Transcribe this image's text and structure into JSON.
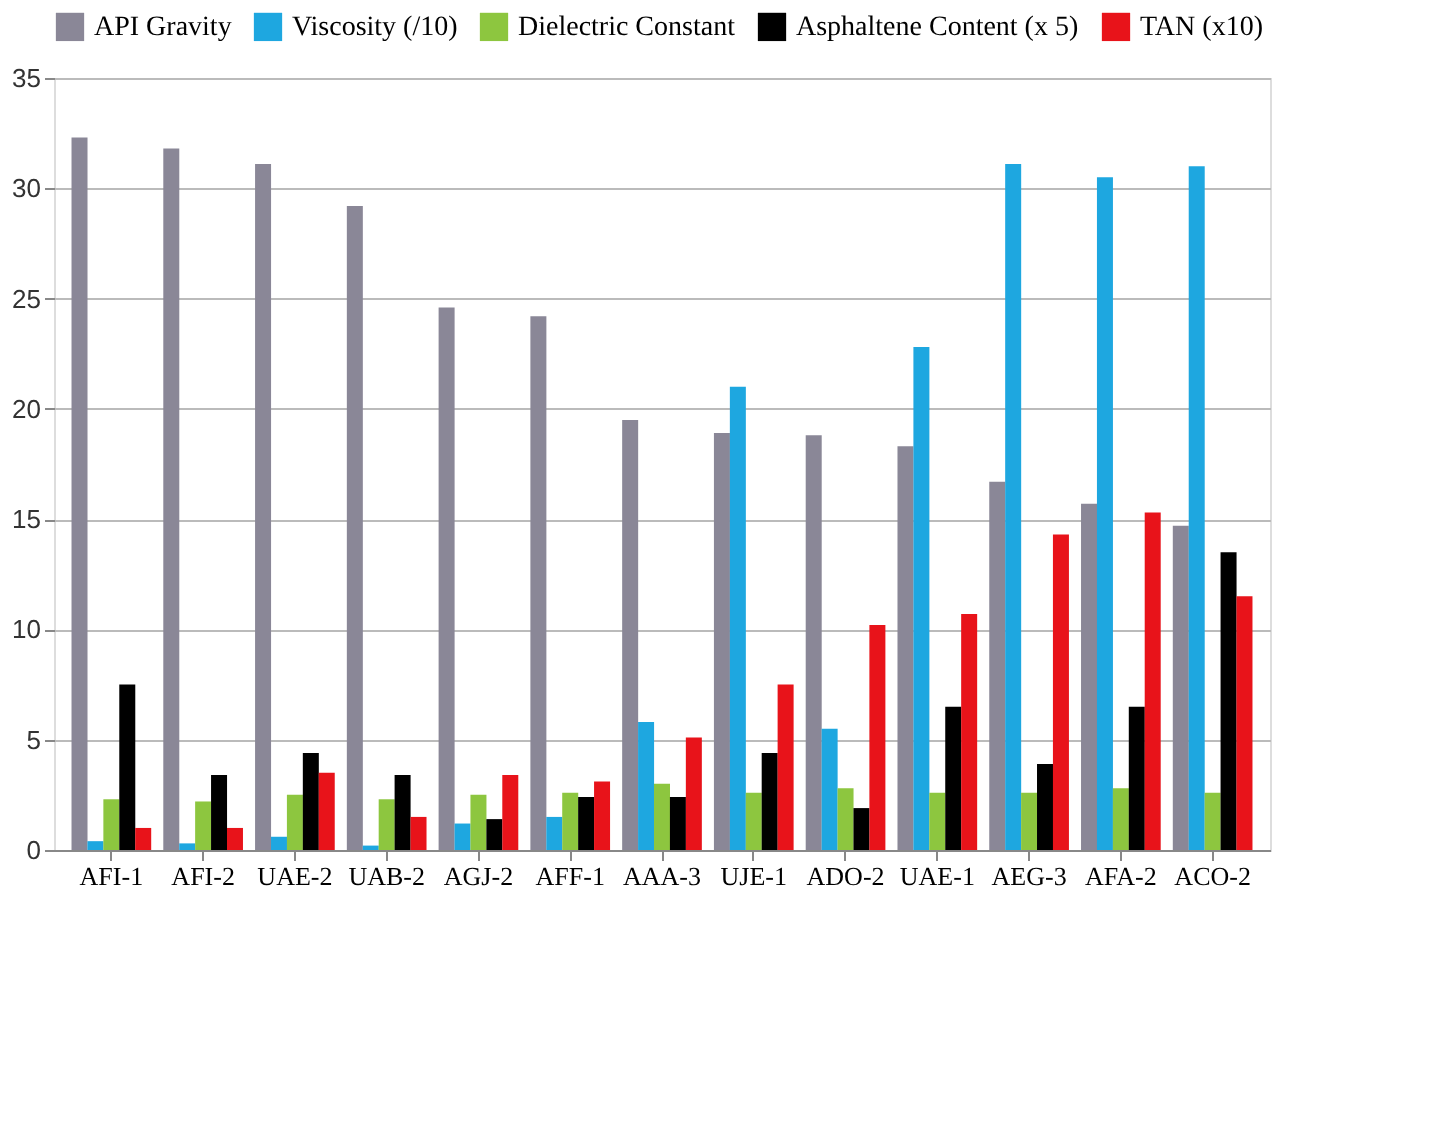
{
  "chart_data": {
    "type": "bar",
    "categories": [
      "AFI-1",
      "AFI-2",
      "UAE-2",
      "UAB-2",
      "AGJ-2",
      "AFF-1",
      "AAA-3",
      "UJE-1",
      "ADO-2",
      "UAE-1",
      "AEG-3",
      "AFA-2",
      "ACO-2"
    ],
    "series": [
      {
        "name": "API Gravity",
        "color": "#8a8797",
        "values": [
          32.3,
          31.8,
          31.1,
          29.2,
          24.6,
          24.2,
          19.5,
          18.9,
          18.8,
          18.3,
          16.7,
          15.7,
          14.7
        ]
      },
      {
        "name": "Viscosity (/10)",
        "color": "#1ea7e0",
        "values": [
          0.4,
          0.3,
          0.6,
          0.2,
          1.2,
          1.5,
          5.8,
          21.0,
          5.5,
          22.8,
          31.1,
          30.5,
          31.0
        ]
      },
      {
        "name": "Dielectric Constant",
        "color": "#8dc63f",
        "values": [
          2.3,
          2.2,
          2.5,
          2.3,
          2.5,
          2.6,
          3.0,
          2.6,
          2.8,
          2.6,
          2.6,
          2.8,
          2.6
        ]
      },
      {
        "name": "Asphaltene Content (x 5)",
        "color": "#000000",
        "values": [
          7.5,
          3.4,
          4.4,
          3.4,
          1.4,
          2.4,
          2.4,
          4.4,
          1.9,
          6.5,
          3.9,
          6.5,
          13.5
        ]
      },
      {
        "name": "TAN (x10)",
        "color": "#e8131a",
        "values": [
          1.0,
          1.0,
          3.5,
          1.5,
          3.4,
          3.1,
          5.1,
          7.5,
          10.2,
          10.7,
          14.3,
          15.3,
          11.5
        ]
      }
    ],
    "ylim": [
      0,
      35
    ],
    "yticks": [
      0,
      5,
      10,
      15,
      20,
      25,
      30,
      35
    ],
    "grid": "y",
    "legend": "top"
  }
}
